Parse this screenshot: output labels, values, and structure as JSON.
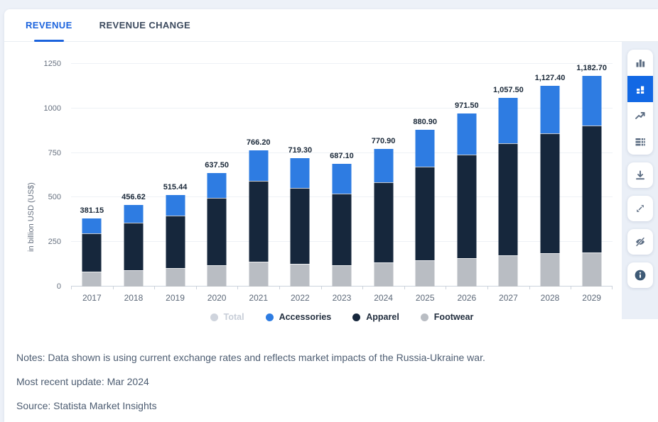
{
  "tabs": [
    {
      "label": "REVENUE",
      "active": true
    },
    {
      "label": "REVENUE CHANGE",
      "active": false
    }
  ],
  "chart_data": {
    "type": "bar",
    "stacked": true,
    "title": "",
    "xlabel": "",
    "ylabel": "in billion USD (US$)",
    "ylim": [
      0,
      1250
    ],
    "yticks": [
      0,
      250,
      500,
      750,
      1000,
      1250
    ],
    "grid": true,
    "legend_position": "bottom",
    "categories": [
      "2017",
      "2018",
      "2019",
      "2020",
      "2021",
      "2022",
      "2023",
      "2024",
      "2025",
      "2026",
      "2027",
      "2028",
      "2029"
    ],
    "totals": [
      381.15,
      456.62,
      515.44,
      637.5,
      766.2,
      719.3,
      687.1,
      770.9,
      880.9,
      971.5,
      1057.5,
      1127.4,
      1182.7
    ],
    "totals_label": [
      "381.15",
      "456.62",
      "515.44",
      "637.50",
      "766.20",
      "719.30",
      "687.10",
      "770.90",
      "880.90",
      "971.50",
      "1,057.50",
      "1,127.40",
      "1,182.70"
    ],
    "series": [
      {
        "name": "Footwear",
        "color": "#b9bdc3",
        "values": [
          85,
          92,
          103,
          118,
          140,
          128,
          118,
          135,
          146,
          158,
          177,
          186,
          192
        ]
      },
      {
        "name": "Apparel",
        "color": "#16273c",
        "values": [
          213,
          266,
          297,
          379,
          454,
          426,
          405,
          450,
          525,
          583,
          628,
          672,
          711
        ]
      },
      {
        "name": "Accessories",
        "color": "#2e7ce2",
        "values": [
          83.15,
          98.62,
          115.44,
          140.5,
          172.2,
          165.3,
          164.1,
          185.9,
          209.9,
          230.5,
          252.5,
          269.4,
          279.7
        ]
      }
    ],
    "legend": [
      {
        "label": "Total",
        "color": "#cfd4dd",
        "muted": true
      },
      {
        "label": "Accessories",
        "color": "#2e7ce2",
        "muted": false
      },
      {
        "label": "Apparel",
        "color": "#16273c",
        "muted": false
      },
      {
        "label": "Footwear",
        "color": "#b9bdc3",
        "muted": false
      }
    ]
  },
  "toolbar": {
    "chart_types": [
      {
        "icon": "column-chart-icon",
        "active": false
      },
      {
        "icon": "stacked-chart-icon",
        "active": true
      },
      {
        "icon": "line-chart-icon",
        "active": false
      },
      {
        "icon": "table-icon",
        "active": false
      }
    ],
    "actions": [
      {
        "icon": "download-icon"
      },
      {
        "icon": "expand-icon"
      },
      {
        "icon": "eye-off-icon"
      },
      {
        "icon": "info-icon"
      }
    ]
  },
  "footer": {
    "notes": "Notes: Data shown is using current exchange rates and reflects market impacts of the Russia-Ukraine war.",
    "updated": "Most recent update: Mar 2024",
    "source": "Source: Statista Market Insights"
  },
  "colors": {
    "accent_blue": "#1b63dd",
    "active_button_blue": "#1268e4",
    "bar_blue": "#2e7ce2",
    "bar_navy": "#16273c",
    "bar_gray": "#b9bdc3",
    "page_background": "#edf1f8"
  }
}
